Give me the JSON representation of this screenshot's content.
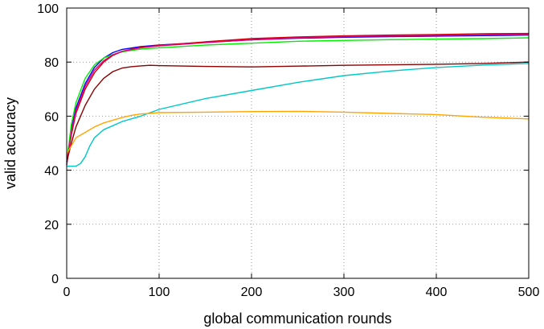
{
  "chart_data": {
    "type": "line",
    "title": "",
    "xlabel": "global communication rounds",
    "ylabel": "valid accuracy",
    "xlim": [
      0,
      500
    ],
    "ylim": [
      0,
      100
    ],
    "xticks": [
      "0",
      "100",
      "200",
      "300",
      "400",
      "500"
    ],
    "yticks": [
      "0",
      "20",
      "40",
      "60",
      "80",
      "100"
    ],
    "grid": true,
    "legend": "none",
    "series": [
      {
        "color": "#0000ff",
        "x": [
          0,
          5,
          10,
          20,
          30,
          40,
          50,
          60,
          80,
          100,
          150,
          200,
          250,
          300,
          350,
          400,
          450,
          500
        ],
        "y": [
          42,
          55,
          63,
          72,
          78,
          81.5,
          83.5,
          84.7,
          85.7,
          86.3,
          87.3,
          88.2,
          88.8,
          89.2,
          89.4,
          89.6,
          89.8,
          90
        ]
      },
      {
        "color": "#00ee00",
        "x": [
          0,
          5,
          10,
          20,
          30,
          40,
          50,
          60,
          80,
          100,
          150,
          200,
          250,
          300,
          350,
          400,
          450,
          500
        ],
        "y": [
          43,
          57,
          65,
          74,
          79,
          81.5,
          82.8,
          83.8,
          84.8,
          85.3,
          86.3,
          87,
          87.7,
          88,
          88.3,
          88.5,
          88.7,
          89
        ]
      },
      {
        "color": "#cc0000",
        "x": [
          0,
          5,
          10,
          20,
          30,
          40,
          50,
          60,
          80,
          100,
          150,
          200,
          250,
          300,
          350,
          400,
          450,
          500
        ],
        "y": [
          43,
          53,
          61,
          70,
          76,
          80,
          82.5,
          84,
          85.5,
          86.2,
          87.5,
          88.7,
          89.3,
          89.7,
          90,
          90.2,
          90.5,
          90.6
        ]
      },
      {
        "color": "#e8007a",
        "x": [
          0,
          5,
          10,
          20,
          30,
          40,
          50,
          60,
          80,
          100,
          150,
          200,
          250,
          300,
          350,
          400,
          450,
          500
        ],
        "y": [
          42,
          54,
          62,
          71,
          77,
          80.5,
          82.7,
          84,
          85.3,
          86,
          87.2,
          88.3,
          89,
          89.4,
          89.7,
          89.9,
          90.1,
          90.3
        ]
      },
      {
        "color": "#8b0000",
        "x": [
          0,
          5,
          10,
          20,
          30,
          40,
          50,
          60,
          70,
          80,
          90,
          100,
          150,
          200,
          250,
          300,
          350,
          400,
          450,
          500
        ],
        "y": [
          43,
          50,
          56,
          64,
          70,
          74,
          76.5,
          77.8,
          78.3,
          78.6,
          78.8,
          78.7,
          78.4,
          78.2,
          78.5,
          78.8,
          79,
          79.2,
          79.5,
          80
        ]
      },
      {
        "color": "#00c8c8",
        "x": [
          0,
          10,
          15,
          20,
          25,
          30,
          40,
          50,
          60,
          80,
          100,
          150,
          200,
          250,
          300,
          350,
          400,
          450,
          500
        ],
        "y": [
          41.5,
          41.5,
          42.5,
          45,
          49,
          52,
          55,
          56.5,
          58,
          60,
          62.5,
          66.5,
          69.5,
          72.5,
          75,
          76.7,
          78,
          78.9,
          79.5
        ]
      },
      {
        "color": "#ffa500",
        "x": [
          0,
          10,
          20,
          30,
          40,
          50,
          60,
          70,
          80,
          90,
          100,
          150,
          200,
          250,
          300,
          350,
          400,
          450,
          500
        ],
        "y": [
          46,
          52,
          54,
          56,
          57.5,
          58.5,
          59.5,
          60.3,
          60.8,
          61,
          61.3,
          61.5,
          61.7,
          61.8,
          61.5,
          61,
          60.6,
          59.6,
          59
        ]
      }
    ]
  }
}
